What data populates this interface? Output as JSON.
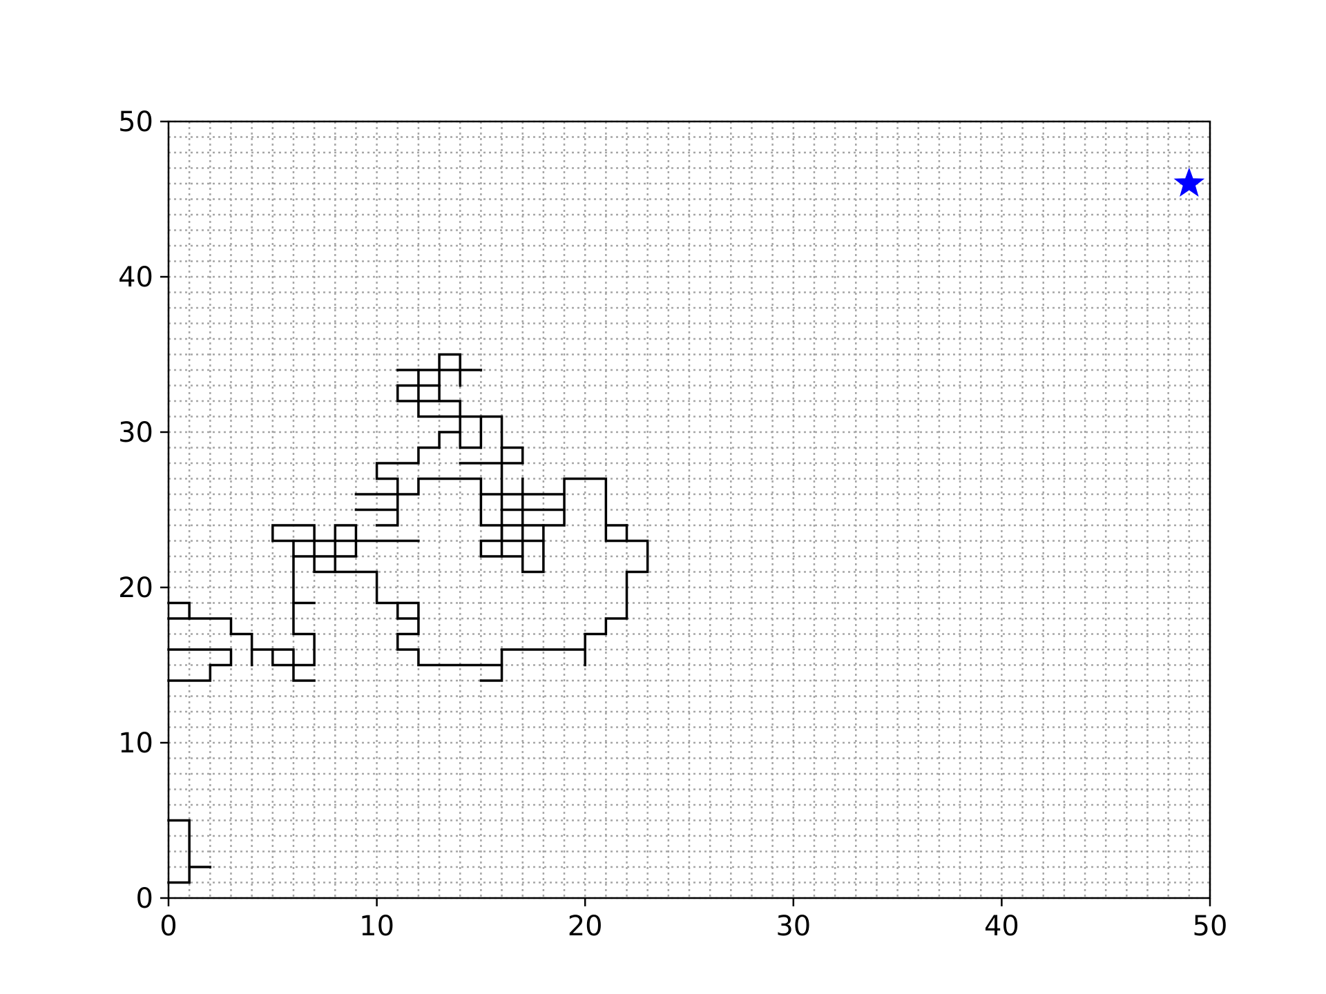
{
  "chart_data": {
    "type": "line",
    "title": "",
    "xlabel": "",
    "ylabel": "",
    "xlim": [
      0,
      50
    ],
    "ylim": [
      0,
      50
    ],
    "grid": true,
    "grid_style": "dotted",
    "grid_step": 1,
    "x_ticks": [
      0,
      10,
      20,
      30,
      40,
      50
    ],
    "y_ticks": [
      0,
      10,
      20,
      30,
      40,
      50
    ],
    "x_tick_labels": [
      "0",
      "10",
      "20",
      "30",
      "40",
      "50"
    ],
    "y_tick_labels": [
      "0",
      "10",
      "20",
      "30",
      "40",
      "50"
    ],
    "colors": {
      "path": "#000000",
      "grid": "#a6a6a6",
      "marker": "#0000ff"
    },
    "marker": {
      "shape": "star",
      "x": 49,
      "y": 46
    },
    "series": [
      {
        "segments": [
          [
            [
              0,
              1
            ],
            [
              1,
              1
            ],
            [
              1,
              5
            ],
            [
              0,
              5
            ]
          ],
          [
            [
              1,
              2
            ],
            [
              2,
              2
            ]
          ],
          [
            [
              0,
              14
            ],
            [
              2,
              14
            ],
            [
              2,
              15
            ],
            [
              3,
              15
            ],
            [
              3,
              16
            ],
            [
              0,
              16
            ]
          ],
          [
            [
              0,
              18
            ],
            [
              3,
              18
            ],
            [
              3,
              17
            ],
            [
              4,
              17
            ],
            [
              4,
              15
            ]
          ],
          [
            [
              0,
              19
            ],
            [
              1,
              19
            ],
            [
              1,
              18
            ]
          ],
          [
            [
              4,
              16
            ],
            [
              6,
              16
            ],
            [
              6,
              14
            ],
            [
              7,
              14
            ]
          ],
          [
            [
              5,
              16
            ],
            [
              5,
              15
            ],
            [
              7,
              15
            ],
            [
              7,
              17
            ],
            [
              6,
              17
            ],
            [
              6,
              23
            ],
            [
              5,
              23
            ],
            [
              5,
              24
            ],
            [
              7,
              24
            ],
            [
              7,
              21
            ],
            [
              10,
              21
            ],
            [
              10,
              19
            ],
            [
              12,
              19
            ],
            [
              12,
              17
            ],
            [
              11,
              17
            ],
            [
              11,
              16
            ],
            [
              12,
              16
            ],
            [
              12,
              15
            ],
            [
              16,
              15
            ],
            [
              16,
              14
            ],
            [
              15,
              14
            ]
          ],
          [
            [
              6,
              19
            ],
            [
              7,
              19
            ]
          ],
          [
            [
              6,
              22
            ],
            [
              9,
              22
            ],
            [
              9,
              24
            ],
            [
              8,
              24
            ],
            [
              8,
              21
            ]
          ],
          [
            [
              6,
              23
            ],
            [
              9,
              23
            ]
          ],
          [
            [
              9,
              23
            ],
            [
              12,
              23
            ]
          ],
          [
            [
              11,
              19
            ],
            [
              11,
              18
            ],
            [
              12,
              18
            ]
          ],
          [
            [
              16,
              15
            ],
            [
              16,
              16
            ],
            [
              20,
              16
            ],
            [
              20,
              15
            ]
          ],
          [
            [
              20,
              16
            ],
            [
              20,
              17
            ],
            [
              21,
              17
            ],
            [
              21,
              18
            ],
            [
              22,
              18
            ],
            [
              22,
              21
            ],
            [
              23,
              21
            ],
            [
              23,
              23
            ],
            [
              21,
              23
            ],
            [
              21,
              24
            ],
            [
              22,
              24
            ]
          ],
          [
            [
              22,
              23
            ],
            [
              22,
              24
            ]
          ],
          [
            [
              10,
              24
            ],
            [
              11,
              24
            ],
            [
              11,
              27
            ],
            [
              10,
              27
            ],
            [
              10,
              28
            ],
            [
              12,
              28
            ],
            [
              12,
              29
            ],
            [
              13,
              29
            ],
            [
              13,
              30
            ],
            [
              14,
              30
            ],
            [
              14,
              29
            ],
            [
              15,
              29
            ],
            [
              15,
              31
            ],
            [
              16,
              31
            ],
            [
              16,
              22
            ],
            [
              17,
              22
            ],
            [
              17,
              21
            ],
            [
              18,
              21
            ],
            [
              18,
              24
            ],
            [
              19,
              24
            ],
            [
              19,
              27
            ],
            [
              21,
              27
            ],
            [
              21,
              24
            ]
          ],
          [
            [
              9,
              25
            ],
            [
              11,
              25
            ]
          ],
          [
            [
              9,
              26
            ],
            [
              12,
              26
            ],
            [
              12,
              27
            ],
            [
              15,
              27
            ]
          ],
          [
            [
              14,
              28
            ],
            [
              17,
              28
            ],
            [
              17,
              29
            ],
            [
              16,
              29
            ]
          ],
          [
            [
              15,
              27
            ],
            [
              15,
              24
            ],
            [
              16,
              24
            ],
            [
              16,
              23
            ],
            [
              15,
              23
            ],
            [
              15,
              22
            ],
            [
              16,
              22
            ]
          ],
          [
            [
              15,
              26
            ],
            [
              19,
              26
            ]
          ],
          [
            [
              16,
              25
            ],
            [
              19,
              25
            ]
          ],
          [
            [
              16,
              24
            ],
            [
              18,
              24
            ]
          ],
          [
            [
              16,
              23
            ],
            [
              18,
              23
            ]
          ],
          [
            [
              17,
              27
            ],
            [
              17,
              22
            ]
          ],
          [
            [
              14,
              30
            ],
            [
              14,
              32
            ],
            [
              13,
              32
            ],
            [
              13,
              35
            ],
            [
              14,
              35
            ],
            [
              14,
              33
            ]
          ],
          [
            [
              11,
              34
            ],
            [
              15,
              34
            ]
          ],
          [
            [
              11,
              33
            ],
            [
              11,
              32
            ],
            [
              13,
              32
            ]
          ],
          [
            [
              11,
              33
            ],
            [
              13,
              33
            ]
          ],
          [
            [
              12,
              34
            ],
            [
              12,
              31
            ],
            [
              14,
              31
            ]
          ],
          [
            [
              14,
              31
            ],
            [
              15,
              31
            ]
          ]
        ]
      }
    ]
  }
}
